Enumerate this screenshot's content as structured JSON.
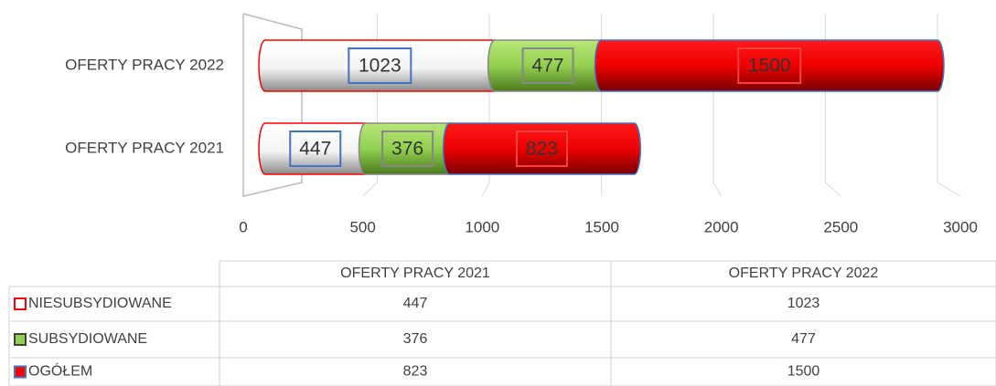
{
  "chart_data": {
    "type": "bar",
    "orientation": "horizontal",
    "stacked": true,
    "categories": [
      "OFERTY PRACY 2021",
      "OFERTY PRACY 2022"
    ],
    "series": [
      {
        "name": "NIESUBSYDIOWANE",
        "color": "#ffffff",
        "values": [
          447,
          1023
        ]
      },
      {
        "name": "SUBSYDIOWANE",
        "color": "#92d050",
        "values": [
          376,
          477
        ]
      },
      {
        "name": "OGÓŁEM",
        "color": "#ff0000",
        "values": [
          823,
          1500
        ]
      }
    ],
    "xlim": [
      0,
      3000
    ],
    "xticks": [
      0,
      500,
      1000,
      1500,
      2000,
      2500,
      3000
    ],
    "grid": true,
    "data_table": true
  }
}
